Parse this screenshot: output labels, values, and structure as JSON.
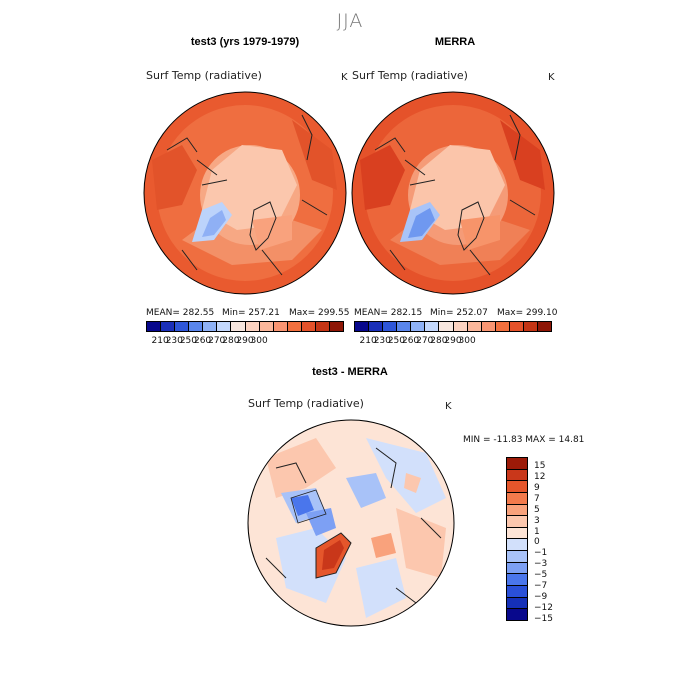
{
  "season": "JJA",
  "panels": [
    {
      "id": "test",
      "title": "test3 (yrs 1979-1979)",
      "var": "Surf Temp (radiative)",
      "unit": "K",
      "stats": {
        "mean": "MEAN= 282.55",
        "min": "Min= 257.21",
        "max": "Max= 299.55"
      }
    },
    {
      "id": "obs",
      "title": "MERRA",
      "var": "Surf Temp (radiative)",
      "unit": "K",
      "stats": {
        "mean": "MEAN= 282.15",
        "min": "Min= 252.07",
        "max": "Max= 299.10"
      }
    },
    {
      "id": "diff",
      "title": "test3 - MERRA",
      "var": "Surf Temp (radiative)",
      "unit": "K",
      "stats": {
        "minmax": "MIN = -11.83 MAX =  14.81"
      }
    }
  ],
  "colors": {
    "abs_scale": [
      "#08088c",
      "#1a2fb8",
      "#2e56d8",
      "#5a86ec",
      "#8fb2f6",
      "#c4d8fc",
      "#f7e6de",
      "#fcd3c1",
      "#fbb79b",
      "#f99572",
      "#f2703e",
      "#e5522a",
      "#c43515",
      "#8e1606"
    ],
    "diff_scale": [
      "#08088c",
      "#1530b8",
      "#2a50d8",
      "#4a76ec",
      "#7da0f4",
      "#a8c2f8",
      "#d2e0fb",
      "#fde4d6",
      "#fcc7ae",
      "#f9a27c",
      "#f37a4c",
      "#e5562b",
      "#c9371a",
      "#9c1a08"
    ],
    "ring_color": "#e95a2f",
    "pole_color": "#f9c9af"
  },
  "chart_data": [
    {
      "type": "heatmap",
      "title": "test3 (yrs 1979-1979)",
      "projection": "north polar stereographic",
      "colorbar_ticks": [
        "210",
        "230",
        "250",
        "260",
        "270",
        "280",
        "290",
        "300"
      ],
      "mean": 282.55,
      "min": 257.21,
      "max": 299.55
    },
    {
      "type": "heatmap",
      "title": "MERRA",
      "projection": "north polar stereographic",
      "colorbar_ticks": [
        "210",
        "230",
        "250",
        "260",
        "270",
        "280",
        "290",
        "300"
      ],
      "mean": 282.15,
      "min": 252.07,
      "max": 299.1
    },
    {
      "type": "heatmap",
      "title": "test3 - MERRA",
      "projection": "north polar stereographic",
      "colorbar_ticks": [
        "15",
        "12",
        "9",
        "7",
        "5",
        "3",
        "1",
        "0",
        "-1",
        "-3",
        "-5",
        "-7",
        "-9",
        "-12",
        "-15"
      ],
      "min": -11.83,
      "max": 14.81
    }
  ]
}
